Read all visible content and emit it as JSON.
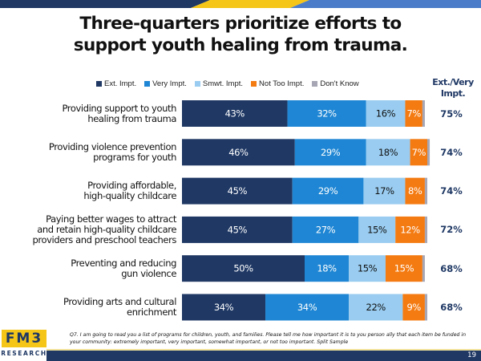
{
  "header": {
    "title_line1": "Three-quarters prioritize efforts to",
    "title_line2": "support youth healing from trauma.",
    "band_colors": [
      "#1f3864",
      "#f5c518",
      "#4a7cc9"
    ]
  },
  "footer": {
    "question_line1": "Q7.  I am going to read you a list of programs for children, youth, and families. Please tell me how important it is to you person     ally that each item be funded in",
    "question_line2": "your community: extremely important, very important, somewhat important, or not too important.     Split Sample",
    "page_number": "19",
    "logo_top": "FM3",
    "logo_bottom": "RESEARCH"
  },
  "chart_data": {
    "type": "bar",
    "orientation": "horizontal-stacked",
    "title": "Three-quarters prioritize efforts to support youth healing from trauma.",
    "xlabel": "",
    "ylabel": "",
    "xlim": [
      0,
      100
    ],
    "grid": false,
    "legend_position": "top",
    "categories": [
      [
        "Providing support to youth",
        "healing from trauma"
      ],
      [
        "Providing violence prevention",
        "programs for youth"
      ],
      [
        "Providing affordable,",
        "high-quality childcare"
      ],
      [
        "Paying better wages to attract",
        "and retain high-quality childcare",
        "providers and preschool teachers"
      ],
      [
        "Preventing and reducing",
        "gun violence"
      ],
      [
        "Providing arts and cultural",
        "enrichment"
      ]
    ],
    "series": [
      {
        "name": "Ext. Impt.",
        "color": "#1f3864",
        "label_color": "#ffffff",
        "values": [
          43,
          46,
          45,
          45,
          50,
          34
        ]
      },
      {
        "name": "Very Impt.",
        "color": "#1e86d4",
        "label_color": "#ffffff",
        "values": [
          32,
          29,
          29,
          27,
          18,
          34
        ]
      },
      {
        "name": "Smwt. Impt.",
        "color": "#99ccf0",
        "label_color": "#111111",
        "values": [
          16,
          18,
          17,
          15,
          15,
          22
        ]
      },
      {
        "name": "Not Too Impt.",
        "color": "#f47b12",
        "label_color": "#ffffff",
        "values": [
          7,
          7,
          8,
          12,
          15,
          9
        ]
      },
      {
        "name": "Don't Know",
        "color": "#a6a6b4",
        "label_color": "#ffffff",
        "values": [
          1,
          1,
          1,
          1,
          1,
          1
        ]
      }
    ],
    "extvery_header": [
      "Ext./Very",
      "Impt."
    ],
    "extvery_values": [
      "75%",
      "74%",
      "74%",
      "72%",
      "68%",
      "68%"
    ]
  }
}
